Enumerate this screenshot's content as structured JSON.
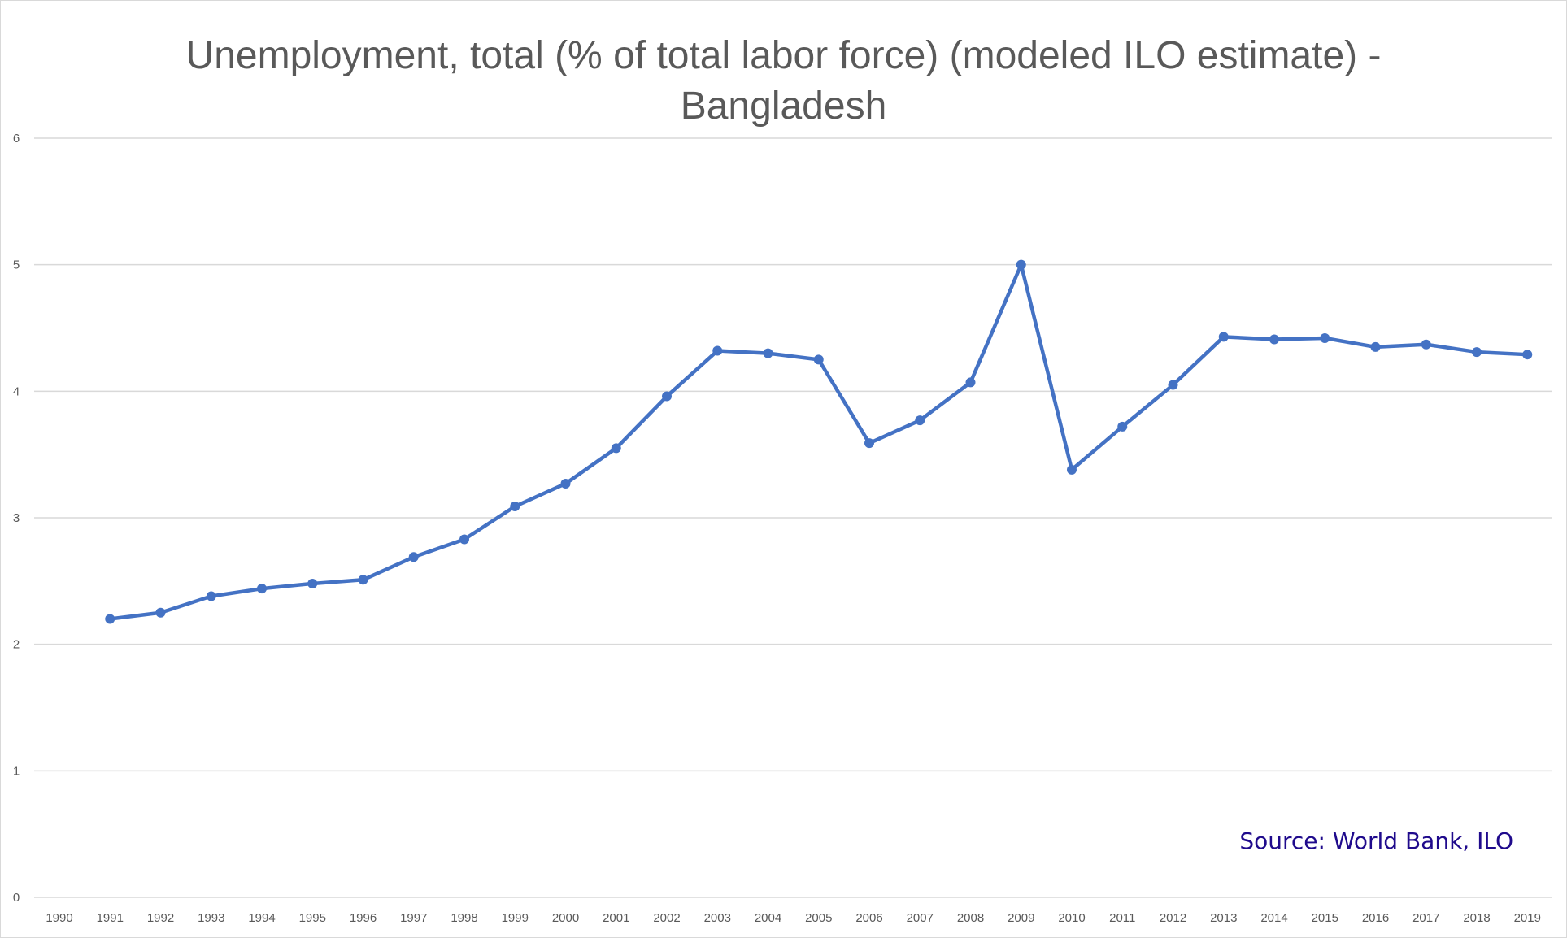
{
  "chart_data": {
    "type": "line",
    "title_line1": "Unemployment, total (% of total labor force) (modeled ILO estimate) -",
    "title_line2": "Bangladesh",
    "xlabel": "",
    "ylabel": "",
    "ylim": [
      0,
      6
    ],
    "yticks": [
      0,
      1,
      2,
      3,
      4,
      5,
      6
    ],
    "categories": [
      "1990",
      "1991",
      "1992",
      "1993",
      "1994",
      "1995",
      "1996",
      "1997",
      "1998",
      "1999",
      "2000",
      "2001",
      "2002",
      "2003",
      "2004",
      "2005",
      "2006",
      "2007",
      "2008",
      "2009",
      "2010",
      "2011",
      "2012",
      "2013",
      "2014",
      "2015",
      "2016",
      "2017",
      "2018",
      "2019"
    ],
    "series": [
      {
        "values": [
          null,
          2.2,
          2.25,
          2.38,
          2.44,
          2.48,
          2.51,
          2.69,
          2.83,
          3.09,
          3.27,
          3.55,
          3.96,
          4.32,
          4.3,
          4.25,
          3.59,
          3.77,
          4.07,
          5.0,
          3.38,
          3.72,
          4.05,
          4.43,
          4.41,
          4.42,
          4.35,
          4.37,
          4.31,
          4.29
        ],
        "color": "#4472c4"
      }
    ],
    "grid": true,
    "legend": "none",
    "gridline_color": "#d9d9d9"
  },
  "annotation": {
    "source": "Source: World Bank, ILO",
    "color": "#1f0a8c"
  }
}
